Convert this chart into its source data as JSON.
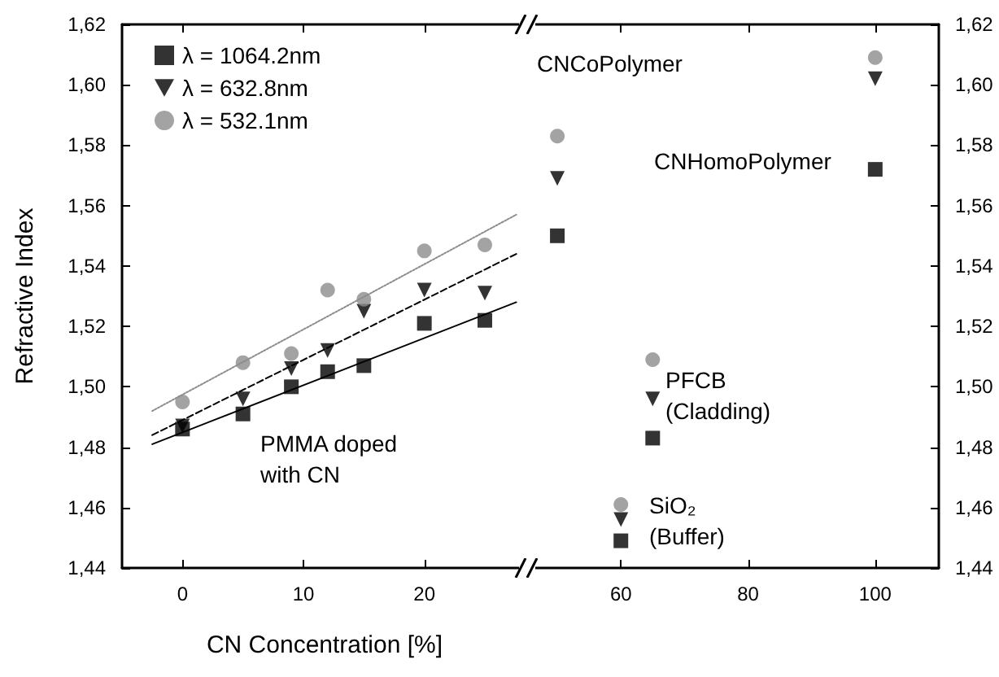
{
  "chart_data": [
    {
      "type": "scatter",
      "xlabel": "CN Concentration [%]",
      "ylabel": "Refractive Index",
      "legend": "top left",
      "grid": false,
      "xlim": [
        -5,
        28.5
      ],
      "xticks": [
        0,
        10,
        20
      ],
      "ylim": [
        1.44,
        1.62
      ],
      "yticks": [
        {
          "value": 1.44,
          "label": "1,44"
        },
        {
          "value": 1.46,
          "label": "1,46"
        },
        {
          "value": 1.48,
          "label": "1,48"
        },
        {
          "value": 1.5,
          "label": "1,50"
        },
        {
          "value": 1.52,
          "label": "1,52"
        },
        {
          "value": 1.54,
          "label": "1,54"
        },
        {
          "value": 1.56,
          "label": "1,56"
        },
        {
          "value": 1.58,
          "label": "1,58"
        },
        {
          "value": 1.6,
          "label": "1,60"
        },
        {
          "value": 1.62,
          "label": "1,62"
        }
      ],
      "annotations": [
        "PMMA doped\nwith CN"
      ],
      "series": [
        {
          "name": "λ = 1064.2nm",
          "color": "#000000",
          "marker": "square",
          "x": [
            0,
            5,
            9,
            12,
            15,
            20,
            25
          ],
          "values": [
            1.486,
            1.491,
            1.5,
            1.505,
            1.507,
            1.521,
            1.522
          ]
        },
        {
          "name": "λ = 632.8nm",
          "color": "#000000",
          "marker": "triangle",
          "x": [
            0,
            5,
            9,
            12,
            15,
            20,
            25
          ],
          "values": [
            1.487,
            1.496,
            1.506,
            1.512,
            1.525,
            1.532,
            1.531
          ]
        },
        {
          "name": "λ = 532.1nm",
          "color": "#8c8c8c",
          "marker": "circle",
          "x": [
            0,
            5,
            9,
            12,
            15,
            20,
            25
          ],
          "values": [
            1.495,
            1.508,
            1.511,
            1.532,
            1.529,
            1.545,
            1.547
          ]
        },
        {
          "type": "line",
          "color": "#000000",
          "marker": "none",
          "line_style": "solid",
          "x": [
            -2.5,
            27.6
          ],
          "values": [
            1.481,
            1.528
          ]
        },
        {
          "type": "line",
          "color": "#000000",
          "marker": "none",
          "line_style": "dashed",
          "x": [
            -2.5,
            27.6
          ],
          "values": [
            1.484,
            1.544
          ]
        },
        {
          "type": "line",
          "color": "#8c8c8c",
          "marker": "none",
          "line_style": "dotted",
          "x": [
            -2.5,
            27.6
          ],
          "values": [
            1.492,
            1.557
          ]
        }
      ]
    },
    {
      "type": "scatter",
      "grid": false,
      "xlim": [
        45,
        110
      ],
      "xticks": [
        60,
        80,
        100
      ],
      "y2lim": [
        1.44,
        1.62
      ],
      "y2ticks": [
        {
          "value": 1.44,
          "label": "1,44"
        },
        {
          "value": 1.46,
          "label": "1,46"
        },
        {
          "value": 1.48,
          "label": "1,48"
        },
        {
          "value": 1.5,
          "label": "1,50"
        },
        {
          "value": 1.52,
          "label": "1,52"
        },
        {
          "value": 1.54,
          "label": "1,54"
        },
        {
          "value": 1.56,
          "label": "1,56"
        },
        {
          "value": 1.58,
          "label": "1,58"
        },
        {
          "value": 1.6,
          "label": "1,60"
        },
        {
          "value": 1.62,
          "label": "1,62"
        }
      ],
      "annotations": [
        "CNCoPolymer",
        "CNHomoPolymer",
        "PFCB\n(Cladding)",
        "SiO₂\n(Buffer)"
      ],
      "series": [
        {
          "axis": "y2",
          "color": "#000000",
          "marker": "square",
          "x": [
            50,
            65,
            60,
            100
          ],
          "values": [
            1.55,
            1.483,
            1.449,
            1.572
          ]
        },
        {
          "axis": "y2",
          "color": "#000000",
          "marker": "triangle",
          "x": [
            50,
            65,
            60,
            100
          ],
          "values": [
            1.569,
            1.496,
            1.456,
            1.602
          ]
        },
        {
          "axis": "y2",
          "color": "#8c8c8c",
          "marker": "circle",
          "x": [
            50,
            65,
            60,
            100
          ],
          "values": [
            1.583,
            1.509,
            1.461,
            1.609
          ]
        }
      ]
    }
  ]
}
